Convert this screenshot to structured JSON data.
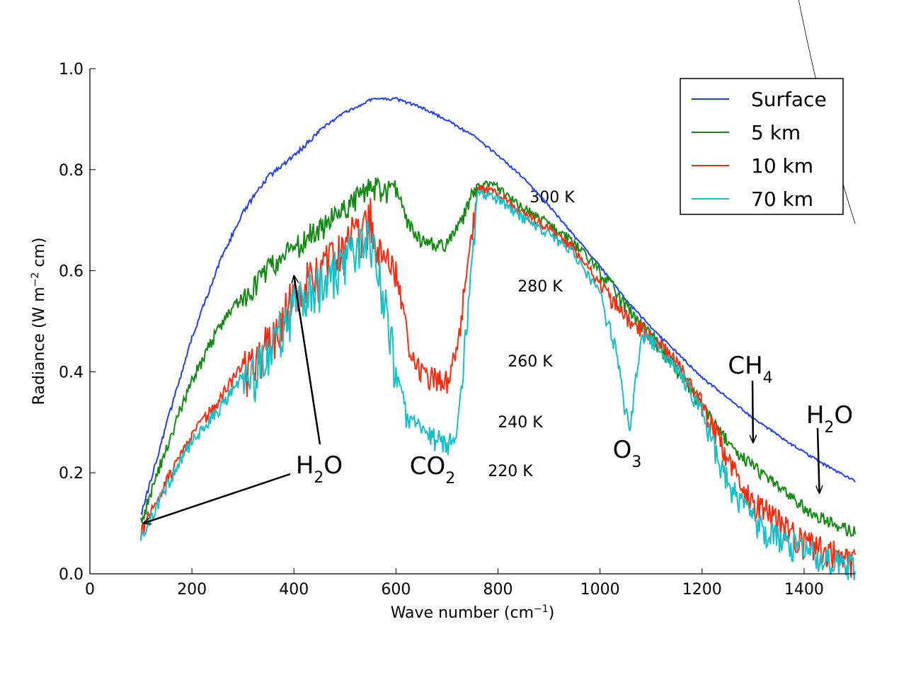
{
  "chart_data": {
    "type": "line",
    "title": "",
    "xlabel": "Wave number (cm",
    "xlabel_sup": "−1",
    "xlabel_end": ")",
    "ylabel": "Radiance (W m",
    "ylabel_sup": "−2",
    "ylabel_end": " cm)",
    "xlim": [
      0,
      1500
    ],
    "ylim": [
      0,
      1.0
    ],
    "xticks": [
      0,
      200,
      400,
      600,
      800,
      1000,
      1200,
      1400
    ],
    "xtick_labels": [
      "0",
      "200",
      "400",
      "600",
      "800",
      "1000",
      "1200",
      "1400"
    ],
    "yticks": [
      0,
      0.2,
      0.4,
      0.6,
      0.8,
      1.0
    ],
    "ytick_labels": [
      "0.0",
      "0.2",
      "0.4",
      "0.6",
      "0.8",
      "1.0"
    ],
    "grid": false,
    "legend_position": "top-right",
    "series": [
      {
        "name": "Surface",
        "color": "#1f3fff",
        "x": [
          100,
          150,
          200,
          250,
          300,
          350,
          400,
          450,
          500,
          550,
          600,
          650,
          700,
          750,
          800,
          850,
          900,
          950,
          1000,
          1050,
          1100,
          1150,
          1200,
          1250,
          1300,
          1350,
          1400,
          1450,
          1500
        ],
        "y": [
          0.12,
          0.3,
          0.47,
          0.61,
          0.72,
          0.79,
          0.83,
          0.88,
          0.915,
          0.94,
          0.942,
          0.925,
          0.9,
          0.87,
          0.83,
          0.785,
          0.73,
          0.67,
          0.61,
          0.545,
          0.49,
          0.44,
          0.39,
          0.35,
          0.31,
          0.275,
          0.242,
          0.212,
          0.185
        ]
      },
      {
        "name": "5 km",
        "color": "#138a13",
        "x": [
          100,
          150,
          200,
          250,
          300,
          350,
          400,
          450,
          500,
          550,
          600,
          625,
          650,
          675,
          700,
          725,
          750,
          775,
          800,
          850,
          900,
          950,
          1000,
          1050,
          1100,
          1150,
          1200,
          1250,
          1300,
          1350,
          1400,
          1450,
          1500
        ],
        "y": [
          0.11,
          0.26,
          0.39,
          0.49,
          0.56,
          0.62,
          0.66,
          0.7,
          0.74,
          0.78,
          0.77,
          0.7,
          0.67,
          0.66,
          0.66,
          0.7,
          0.76,
          0.78,
          0.77,
          0.73,
          0.7,
          0.66,
          0.61,
          0.54,
          0.48,
          0.42,
          0.34,
          0.27,
          0.22,
          0.18,
          0.14,
          0.11,
          0.09
        ]
      },
      {
        "name": "10 km",
        "color": "#ff2a0e",
        "x": [
          100,
          150,
          200,
          250,
          300,
          350,
          400,
          450,
          500,
          550,
          570,
          580,
          600,
          620,
          640,
          660,
          680,
          700,
          720,
          740,
          760,
          800,
          850,
          900,
          950,
          1000,
          1050,
          1100,
          1150,
          1200,
          1250,
          1300,
          1350,
          1400,
          1450,
          1500
        ],
        "y": [
          0.09,
          0.19,
          0.28,
          0.35,
          0.42,
          0.48,
          0.58,
          0.62,
          0.68,
          0.73,
          0.65,
          0.64,
          0.62,
          0.5,
          0.42,
          0.41,
          0.4,
          0.4,
          0.46,
          0.62,
          0.77,
          0.76,
          0.72,
          0.69,
          0.65,
          0.58,
          0.52,
          0.48,
          0.43,
          0.35,
          0.24,
          0.16,
          0.12,
          0.08,
          0.06,
          0.04
        ]
      },
      {
        "name": "70 km",
        "color": "#17c0c8",
        "x": [
          100,
          150,
          200,
          250,
          300,
          350,
          400,
          450,
          500,
          550,
          580,
          600,
          620,
          640,
          660,
          680,
          700,
          720,
          740,
          760,
          800,
          850,
          900,
          950,
          1000,
          1030,
          1050,
          1060,
          1080,
          1100,
          1150,
          1200,
          1250,
          1300,
          1350,
          1400,
          1450,
          1500
        ],
        "y": [
          0.08,
          0.18,
          0.27,
          0.33,
          0.4,
          0.46,
          0.56,
          0.6,
          0.65,
          0.7,
          0.56,
          0.42,
          0.33,
          0.3,
          0.29,
          0.28,
          0.27,
          0.3,
          0.52,
          0.76,
          0.75,
          0.71,
          0.68,
          0.64,
          0.56,
          0.46,
          0.33,
          0.3,
          0.48,
          0.47,
          0.42,
          0.33,
          0.2,
          0.12,
          0.09,
          0.06,
          0.05,
          0.03
        ]
      }
    ],
    "blackbody_curves": [
      {
        "label": "300 K",
        "temperature": 300
      },
      {
        "label": "280 K",
        "temperature": 280
      },
      {
        "label": "260 K",
        "temperature": 260
      },
      {
        "label": "240 K",
        "temperature": 240
      },
      {
        "label": "220 K",
        "temperature": 220
      }
    ],
    "annotations": [
      {
        "base": "H",
        "sub": "2",
        "rest": "O",
        "x": 450,
        "y": 0.2,
        "arrows_to": [
          [
            105,
            0.1
          ],
          [
            400,
            0.59
          ]
        ]
      },
      {
        "base": "CO",
        "sub": "2",
        "rest": "",
        "x": 600,
        "y": 0.2,
        "arrows_to": []
      },
      {
        "base": "O",
        "sub": "3",
        "rest": "",
        "x": 1050,
        "y": 0.24,
        "arrows_to": []
      },
      {
        "base": "CH",
        "sub": "4",
        "rest": "",
        "x": 1300,
        "y": 0.42,
        "arrows_to": [
          [
            1300,
            0.26
          ]
        ]
      },
      {
        "base": "H",
        "sub": "2",
        "rest": "O",
        "x": 1430,
        "y": 0.3,
        "arrows_to": [
          [
            1430,
            0.16
          ]
        ]
      }
    ]
  }
}
